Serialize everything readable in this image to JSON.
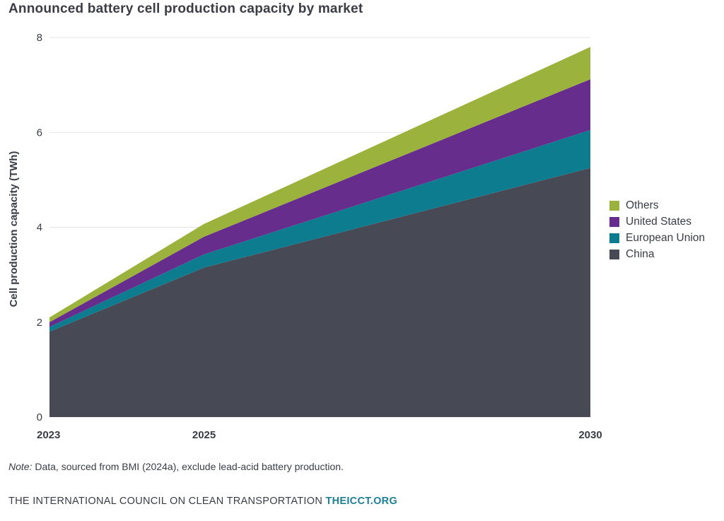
{
  "header": {
    "title": "Announced battery cell production capacity by market"
  },
  "chart_data": {
    "type": "area",
    "stacked": true,
    "title": "Announced battery cell production capacity by market",
    "xlabel": "",
    "ylabel": "Cell production capacity (TWh)",
    "x": [
      2023,
      2025,
      2030
    ],
    "xticks": [
      "2023",
      "2025",
      "2030"
    ],
    "yticks": [
      "0",
      "2",
      "4",
      "6",
      "8"
    ],
    "ylim": [
      0,
      8
    ],
    "grid": true,
    "legend_position": "right",
    "series": [
      {
        "name": "China",
        "values": [
          1.8,
          3.15,
          5.25
        ],
        "color": "#474a55"
      },
      {
        "name": "European Union",
        "values": [
          0.1,
          0.28,
          0.8
        ],
        "color": "#0e7c8f"
      },
      {
        "name": "United States",
        "values": [
          0.1,
          0.37,
          1.07
        ],
        "color": "#662d8c"
      },
      {
        "name": "Others",
        "values": [
          0.1,
          0.27,
          0.68
        ],
        "color": "#9bb23c"
      }
    ]
  },
  "legend": {
    "items": [
      {
        "label": "Others",
        "color": "#9bb23c"
      },
      {
        "label": "United States",
        "color": "#662d8c"
      },
      {
        "label": "European Union",
        "color": "#0e7c8f"
      },
      {
        "label": "China",
        "color": "#474a55"
      }
    ]
  },
  "note": {
    "prefix": "Note:",
    "text": " Data, sourced from BMI (2024a), exclude lead-acid battery production."
  },
  "footer": {
    "org": "THE INTERNATIONAL COUNCIL ON CLEAN TRANSPORTATION ",
    "site": "THEICCT.ORG"
  }
}
